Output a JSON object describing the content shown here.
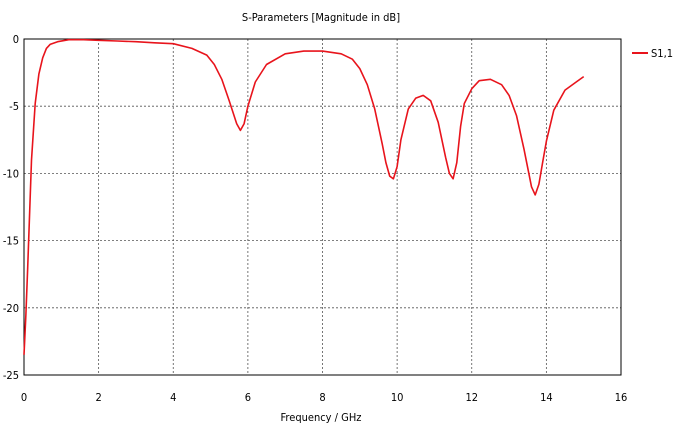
{
  "chart_data": {
    "type": "line",
    "title": "S-Parameters [Magnitude in dB]",
    "xlabel": "Frequency / GHz",
    "ylabel": "",
    "xlim": [
      0,
      16
    ],
    "ylim": [
      -25,
      0
    ],
    "x_ticks": [
      "0",
      "2",
      "4",
      "6",
      "8",
      "10",
      "12",
      "14",
      "16"
    ],
    "y_ticks": [
      "0",
      "-5",
      "-10",
      "-15",
      "-20",
      "-25"
    ],
    "grid": true,
    "legend_position": "top-right",
    "series": [
      {
        "name": "S1,1",
        "color": "#e8141c",
        "x": [
          0,
          0.05,
          0.1,
          0.2,
          0.3,
          0.4,
          0.5,
          0.6,
          0.7,
          0.9,
          1.2,
          1.6,
          2.0,
          2.5,
          3.0,
          3.5,
          4.0,
          4.5,
          4.9,
          5.1,
          5.3,
          5.5,
          5.7,
          5.8,
          5.9,
          6.0,
          6.2,
          6.5,
          7.0,
          7.5,
          8.0,
          8.5,
          8.8,
          9.0,
          9.2,
          9.4,
          9.6,
          9.7,
          9.8,
          9.9,
          10.0,
          10.1,
          10.3,
          10.5,
          10.7,
          10.9,
          11.1,
          11.3,
          11.4,
          11.5,
          11.6,
          11.7,
          11.8,
          12.0,
          12.2,
          12.5,
          12.8,
          13.0,
          13.2,
          13.4,
          13.6,
          13.7,
          13.8,
          13.9,
          14.0,
          14.2,
          14.5,
          14.8,
          15.0
        ],
        "values": [
          -23.5,
          -20.5,
          -17.0,
          -9.0,
          -4.8,
          -2.6,
          -1.4,
          -0.7,
          -0.4,
          -0.2,
          -0.05,
          -0.05,
          -0.1,
          -0.15,
          -0.2,
          -0.28,
          -0.35,
          -0.7,
          -1.2,
          -1.9,
          -3.0,
          -4.6,
          -6.3,
          -6.8,
          -6.3,
          -5.0,
          -3.2,
          -1.9,
          -1.1,
          -0.9,
          -0.9,
          -1.1,
          -1.5,
          -2.2,
          -3.4,
          -5.2,
          -7.8,
          -9.2,
          -10.2,
          -10.4,
          -9.5,
          -7.5,
          -5.2,
          -4.4,
          -4.2,
          -4.6,
          -6.2,
          -8.8,
          -10.0,
          -10.4,
          -9.2,
          -6.5,
          -4.8,
          -3.7,
          -3.1,
          -3.0,
          -3.4,
          -4.2,
          -5.7,
          -8.2,
          -11.0,
          -11.6,
          -10.8,
          -9.2,
          -7.6,
          -5.3,
          -3.8,
          -3.2,
          -2.8
        ]
      }
    ]
  }
}
